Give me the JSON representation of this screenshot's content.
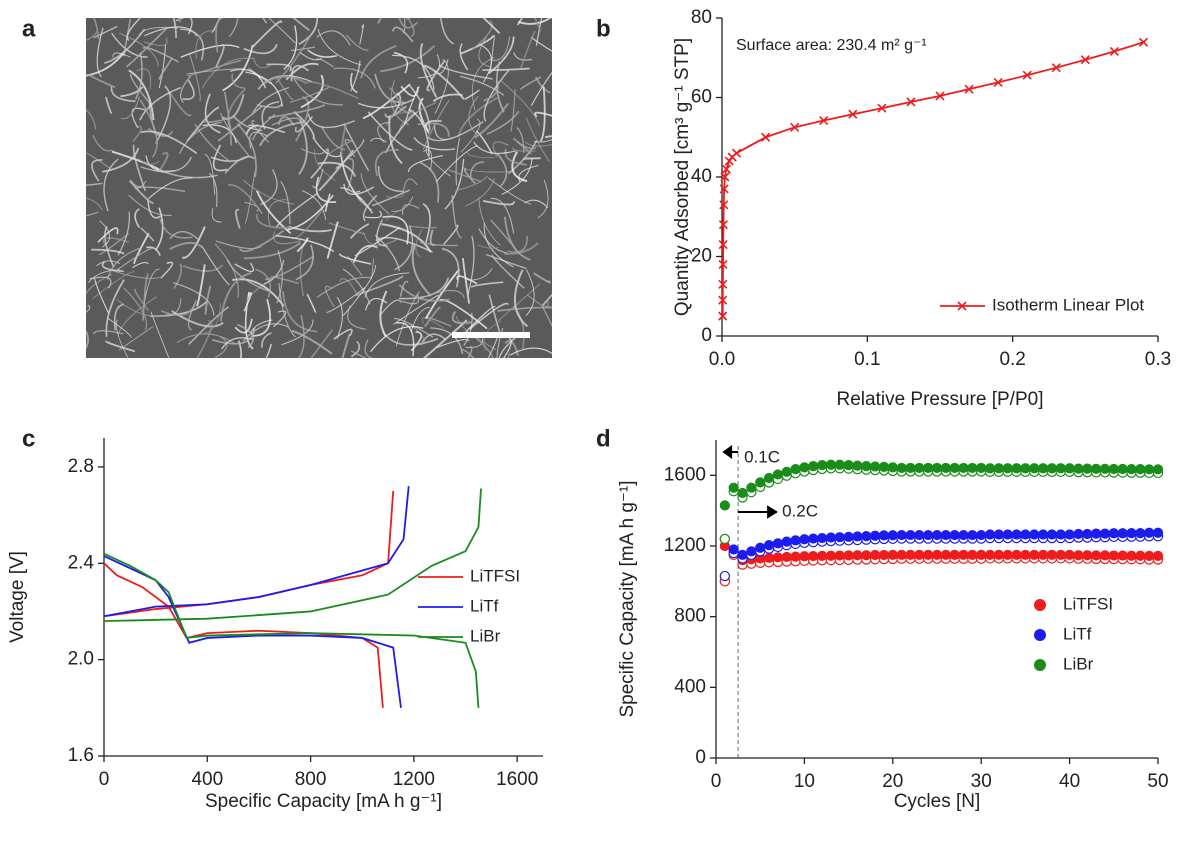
{
  "chart_data": [
    {
      "type": "image",
      "panel": "a"
    },
    {
      "type": "line",
      "panel": "b",
      "annotation": "Surface area: 230.4 m² g⁻¹",
      "xlabel": "Relative Pressure [P/P0]",
      "ylabel": "Quantity Adsorbed [cm³ g⁻¹ STP]",
      "xlim": [
        0,
        0.3
      ],
      "ylim": [
        0,
        80
      ],
      "xticks": [
        {
          "value": 0,
          "label": "0.0"
        },
        0.1,
        0.2,
        0.3
      ],
      "yticks": [
        0,
        20,
        40,
        60,
        80
      ],
      "legend": "lower right",
      "series": [
        {
          "name": "Isotherm Linear Plot",
          "color": "#ee1c1c",
          "marker": "x",
          "x": [
            0.0005,
            0.0005,
            0.0006,
            0.0007,
            0.0008,
            0.001,
            0.0012,
            0.0015,
            0.002,
            0.003,
            0.005,
            0.007,
            0.01,
            0.03,
            0.05,
            0.07,
            0.09,
            0.11,
            0.13,
            0.15,
            0.17,
            0.19,
            0.21,
            0.23,
            0.25,
            0.27,
            0.29
          ],
          "values": [
            5,
            9,
            13,
            18,
            23,
            28,
            33,
            37,
            40,
            42,
            44,
            45,
            46,
            50,
            52.5,
            54.2,
            55.8,
            57.3,
            58.9,
            60.4,
            62.1,
            63.8,
            65.6,
            67.5,
            69.5,
            71.6,
            73.9
          ]
        }
      ]
    },
    {
      "type": "line",
      "panel": "c",
      "xlabel": "Specific Capacity [mA h g⁻¹]",
      "ylabel": "Voltage [V]",
      "xlim": [
        0,
        1700
      ],
      "ylim": [
        1.6,
        2.92
      ],
      "xticks": [
        0,
        400,
        800,
        1200,
        1600
      ],
      "yticks": [
        1.6,
        {
          "value": 2.0,
          "label": "2.0"
        },
        2.4,
        2.8
      ],
      "legend": "center right",
      "series": [
        {
          "name": "LiTFSI",
          "color": "#ee1c1c",
          "x": [
            0,
            50,
            150,
            250,
            320,
            400,
            600,
            800,
            1000,
            1060,
            1080,
            null,
            0,
            200,
            400,
            600,
            800,
            1000,
            1100,
            1120
          ],
          "values": [
            2.4,
            2.35,
            2.3,
            2.22,
            2.09,
            2.11,
            2.12,
            2.11,
            2.09,
            2.05,
            1.8,
            null,
            2.18,
            2.21,
            2.23,
            2.26,
            2.31,
            2.35,
            2.4,
            2.7
          ]
        },
        {
          "name": "LiTf",
          "color": "#1c1cee",
          "x": [
            0,
            100,
            200,
            250,
            330,
            400,
            600,
            800,
            1000,
            1120,
            1150,
            null,
            0,
            200,
            400,
            600,
            800,
            1000,
            1100,
            1160,
            1180
          ],
          "values": [
            2.43,
            2.38,
            2.33,
            2.26,
            2.07,
            2.09,
            2.1,
            2.1,
            2.09,
            2.05,
            1.8,
            null,
            2.18,
            2.22,
            2.23,
            2.26,
            2.31,
            2.37,
            2.4,
            2.5,
            2.72
          ]
        },
        {
          "name": "LiBr",
          "color": "#1a8c1a",
          "x": [
            0,
            100,
            200,
            250,
            320,
            400,
            800,
            1200,
            1400,
            1440,
            1450,
            null,
            0,
            400,
            800,
            1100,
            1270,
            1400,
            1450,
            1460
          ],
          "values": [
            2.44,
            2.39,
            2.33,
            2.28,
            2.09,
            2.1,
            2.11,
            2.1,
            2.07,
            1.95,
            1.8,
            null,
            2.16,
            2.17,
            2.2,
            2.27,
            2.39,
            2.45,
            2.55,
            2.71
          ]
        }
      ]
    },
    {
      "type": "scatter",
      "panel": "d",
      "xlabel": "Cycles [N]",
      "ylabel": "Specific Capacity [mA h g⁻¹]",
      "annotations": [
        "0.1C",
        "0.2C"
      ],
      "xlim": [
        0,
        50
      ],
      "ylim": [
        0,
        1800
      ],
      "xticks": [
        0,
        10,
        20,
        30,
        40,
        50
      ],
      "yticks": [
        0,
        400,
        800,
        1200,
        1600
      ],
      "legend": "center right",
      "x": [
        1,
        2,
        3,
        4,
        5,
        6,
        7,
        8,
        9,
        10,
        11,
        12,
        13,
        14,
        15,
        16,
        17,
        18,
        19,
        20,
        21,
        22,
        23,
        24,
        25,
        26,
        27,
        28,
        29,
        30,
        31,
        32,
        33,
        34,
        35,
        36,
        37,
        38,
        39,
        40,
        41,
        42,
        43,
        44,
        45,
        46,
        47,
        48,
        49,
        50
      ],
      "series": [
        {
          "name": "LiTFSI",
          "color": "#ee1c1c",
          "values": [
            1200,
            1170,
            1120,
            1125,
            1130,
            1133,
            1136,
            1138,
            1140,
            1142,
            1143,
            1144,
            1145,
            1146,
            1147,
            1148,
            1148,
            1149,
            1149,
            1150,
            1150,
            1150,
            1150,
            1150,
            1150,
            1150,
            1150,
            1150,
            1150,
            1150,
            1150,
            1150,
            1150,
            1150,
            1150,
            1150,
            1150,
            1150,
            1150,
            1150,
            1148,
            1148,
            1147,
            1147,
            1146,
            1146,
            1145,
            1145,
            1144,
            1144
          ],
          "values_open": [
            1000,
            1150,
            1095,
            1100,
            1105,
            1108,
            1110,
            1112,
            1114,
            1116,
            1118,
            1119,
            1120,
            1121,
            1122,
            1123,
            1124,
            1125,
            1126,
            1127,
            1128,
            1128,
            1128,
            1128,
            1128,
            1128,
            1128,
            1128,
            1128,
            1128,
            1130,
            1130,
            1130,
            1130,
            1130,
            1130,
            1130,
            1130,
            1130,
            1130,
            1128,
            1128,
            1127,
            1127,
            1126,
            1126,
            1125,
            1125,
            1124,
            1124
          ]
        },
        {
          "name": "LiTf",
          "color": "#1c1cee",
          "values": [
            1240,
            1180,
            1150,
            1170,
            1190,
            1205,
            1215,
            1225,
            1232,
            1238,
            1242,
            1245,
            1248,
            1250,
            1252,
            1254,
            1256,
            1258,
            1260,
            1261,
            1262,
            1262,
            1262,
            1262,
            1262,
            1262,
            1262,
            1262,
            1262,
            1262,
            1265,
            1265,
            1265,
            1265,
            1265,
            1265,
            1265,
            1265,
            1265,
            1265,
            1268,
            1268,
            1270,
            1270,
            1272,
            1272,
            1273,
            1273,
            1275,
            1275
          ],
          "values_open": [
            1030,
            1160,
            1130,
            1150,
            1170,
            1185,
            1195,
            1205,
            1212,
            1218,
            1222,
            1225,
            1228,
            1230,
            1232,
            1234,
            1236,
            1238,
            1240,
            1241,
            1242,
            1242,
            1242,
            1242,
            1242,
            1242,
            1242,
            1242,
            1242,
            1242,
            1245,
            1245,
            1245,
            1245,
            1245,
            1245,
            1245,
            1245,
            1245,
            1245,
            1248,
            1248,
            1250,
            1250,
            1252,
            1252,
            1253,
            1253,
            1255,
            1255
          ]
        },
        {
          "name": "LiBr",
          "color": "#1a8c1a",
          "values": [
            1430,
            1530,
            1500,
            1530,
            1560,
            1585,
            1605,
            1620,
            1635,
            1645,
            1652,
            1658,
            1660,
            1660,
            1658,
            1655,
            1652,
            1650,
            1648,
            1645,
            1642,
            1642,
            1642,
            1642,
            1642,
            1642,
            1642,
            1642,
            1642,
            1642,
            1640,
            1640,
            1640,
            1640,
            1640,
            1640,
            1640,
            1640,
            1640,
            1640,
            1638,
            1638,
            1637,
            1637,
            1636,
            1636,
            1635,
            1635,
            1634,
            1634
          ],
          "values_open": [
            1240,
            1510,
            1475,
            1505,
            1535,
            1560,
            1580,
            1598,
            1612,
            1622,
            1630,
            1636,
            1640,
            1640,
            1638,
            1635,
            1632,
            1630,
            1628,
            1625,
            1622,
            1622,
            1622,
            1622,
            1622,
            1622,
            1622,
            1622,
            1622,
            1622,
            1620,
            1620,
            1620,
            1620,
            1620,
            1620,
            1620,
            1620,
            1620,
            1620,
            1618,
            1618,
            1617,
            1617,
            1616,
            1616,
            1615,
            1615,
            1614,
            1614
          ]
        }
      ]
    }
  ]
}
